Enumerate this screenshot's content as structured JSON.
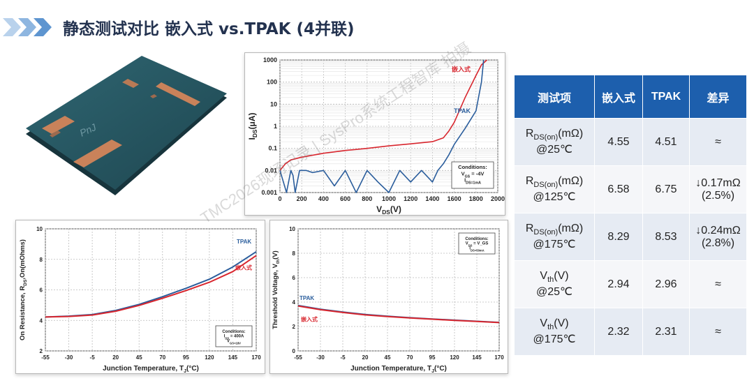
{
  "page": {
    "title": "静态测试对比 嵌入式 vs.TPAK (4并联)",
    "watermark": "TMC2026现场记录 | SysPro系统工程智库 拍摄"
  },
  "colors": {
    "embedded": "#d8262e",
    "tpak": "#2a5d9c",
    "header_blue": "#1d5fad",
    "title": "#23324f",
    "pcb": "#25505a"
  },
  "pcb_image": {
    "label": "PnJ"
  },
  "chart_data": [
    {
      "type": "line",
      "xlabel": "V_DS(V)",
      "ylabel": "I_DS(μA)",
      "x_ticks": [
        "0",
        "200",
        "400",
        "600",
        "800",
        "1000",
        "1200",
        "1400",
        "1600",
        "1800",
        "2000"
      ],
      "y_ticks": [
        "1000",
        "100",
        "10",
        "1",
        "0.1",
        "0.01",
        "0.001"
      ],
      "xlim": [
        0,
        2000
      ],
      "ylim": [
        0.001,
        1000
      ],
      "yscale": "log",
      "grid": true,
      "series": [
        {
          "name": "嵌入式",
          "x": [
            0,
            50,
            100,
            200,
            400,
            600,
            800,
            1000,
            1200,
            1400,
            1500,
            1550,
            1600,
            1700,
            1800,
            1850,
            1900
          ],
          "y": [
            0.01,
            0.02,
            0.03,
            0.04,
            0.06,
            0.08,
            0.1,
            0.13,
            0.16,
            0.2,
            0.3,
            0.6,
            1.5,
            20,
            200,
            600,
            1000
          ]
        },
        {
          "name": "TPAK",
          "x": [
            0,
            60,
            100,
            120,
            140,
            180,
            240,
            300,
            400,
            500,
            600,
            700,
            800,
            900,
            1000,
            1100,
            1200,
            1300,
            1400,
            1450,
            1500,
            1550,
            1600,
            1700,
            1800,
            1850,
            1870
          ],
          "y": [
            0.01,
            0.001,
            0.01,
            0.006,
            0.001,
            0.01,
            0.01,
            0.008,
            0.01,
            0.002,
            0.01,
            0.001,
            0.01,
            0.003,
            0.001,
            0.01,
            0.003,
            0.01,
            0.003,
            0.01,
            0.02,
            0.05,
            0.15,
            0.8,
            5,
            100,
            1000
          ]
        }
      ],
      "conditions": [
        "Conditions:",
        "V_GS = -4V",
        "I_DS=1mA"
      ]
    },
    {
      "type": "line",
      "xlabel": "Junction Temperature, T_J(°C)",
      "ylabel": "On Resistance, R_DS,On(mOhms)",
      "x_ticks": [
        "-55",
        "-30",
        "-5",
        "20",
        "45",
        "70",
        "95",
        "120",
        "145",
        "170"
      ],
      "y_ticks": [
        "10",
        "8",
        "6",
        "4",
        "2"
      ],
      "xlim": [
        -55,
        170
      ],
      "ylim": [
        2,
        10
      ],
      "grid": true,
      "series": [
        {
          "name": "TPAK",
          "x": [
            -55,
            -30,
            -5,
            20,
            45,
            70,
            95,
            120,
            145,
            170
          ],
          "y": [
            4.22,
            4.28,
            4.38,
            4.65,
            5.05,
            5.55,
            6.1,
            6.7,
            7.5,
            8.5
          ]
        },
        {
          "name": "嵌入式",
          "x": [
            -55,
            -30,
            -5,
            20,
            45,
            70,
            95,
            120,
            145,
            170
          ],
          "y": [
            4.22,
            4.26,
            4.35,
            4.6,
            4.98,
            5.45,
            5.95,
            6.5,
            7.2,
            8.25
          ]
        }
      ],
      "conditions": [
        "Conditions:",
        "I_DS = 400A",
        "V_GS=18V"
      ]
    },
    {
      "type": "line",
      "xlabel": "Junction Temperature, T_J(°C)",
      "ylabel": "Threshold Voltage, V_th(V)",
      "x_ticks": [
        "-55",
        "-30",
        "-5",
        "20",
        "45",
        "70",
        "95",
        "120",
        "145",
        "170"
      ],
      "y_ticks": [
        "10",
        "8",
        "6",
        "4",
        "2",
        "0"
      ],
      "xlim": [
        -55,
        170
      ],
      "ylim": [
        0,
        10
      ],
      "grid": true,
      "series": [
        {
          "name": "TPAK",
          "x": [
            -55,
            -30,
            -5,
            20,
            45,
            70,
            95,
            120,
            145,
            170
          ],
          "y": [
            3.72,
            3.42,
            3.18,
            2.98,
            2.84,
            2.72,
            2.62,
            2.52,
            2.43,
            2.34
          ]
        },
        {
          "name": "嵌入式",
          "x": [
            -55,
            -30,
            -5,
            20,
            45,
            70,
            95,
            120,
            145,
            170
          ],
          "y": [
            3.68,
            3.38,
            3.15,
            2.95,
            2.82,
            2.7,
            2.6,
            2.5,
            2.41,
            2.32
          ]
        }
      ],
      "conditions": [
        "Conditions:",
        "V_DS = V_GS",
        "I_DS=50mA"
      ]
    }
  ],
  "table": {
    "headers": [
      "测试项",
      "嵌入式",
      "TPAK",
      "差异"
    ],
    "rows": [
      {
        "item_main": "R",
        "item_sub": "DS(on)",
        "item_unit": "(mΩ)",
        "item_cond": "@25℃",
        "embedded": "4.55",
        "tpak": "4.51",
        "diff1": "≈",
        "diff2": ""
      },
      {
        "item_main": "R",
        "item_sub": "DS(on)",
        "item_unit": "(mΩ)",
        "item_cond": "@125℃",
        "embedded": "6.58",
        "tpak": "6.75",
        "diff1": "↓0.17mΩ",
        "diff2": "(2.5%)"
      },
      {
        "item_main": "R",
        "item_sub": "DS(on)",
        "item_unit": "(mΩ)",
        "item_cond": "@175℃",
        "embedded": "8.29",
        "tpak": "8.53",
        "diff1": "↓0.24mΩ",
        "diff2": "(2.8%)"
      },
      {
        "item_main": "V",
        "item_sub": "th",
        "item_unit": "(V)",
        "item_cond": "@25℃",
        "embedded": "2.94",
        "tpak": "2.96",
        "diff1": "≈",
        "diff2": ""
      },
      {
        "item_main": "V",
        "item_sub": "th",
        "item_unit": "(V)",
        "item_cond": "@175℃",
        "embedded": "2.32",
        "tpak": "2.31",
        "diff1": "≈",
        "diff2": ""
      }
    ]
  }
}
